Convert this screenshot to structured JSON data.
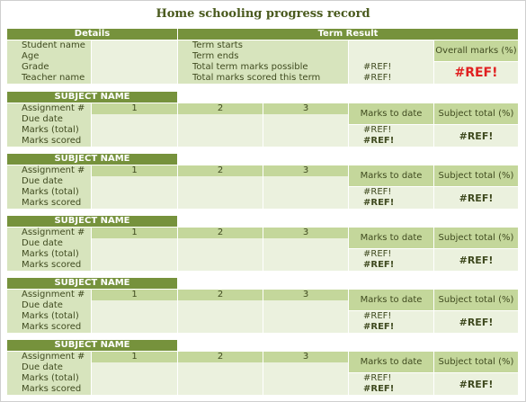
{
  "title": "Home schooling progress record",
  "details": {
    "header": "Details",
    "rows": [
      "Student name",
      "Age",
      "Grade",
      "Teacher name"
    ]
  },
  "term": {
    "header": "Term Result",
    "rows": [
      "Term starts",
      "Term ends",
      "Total term marks possible",
      "Total marks scored this term"
    ],
    "values": [
      "",
      "",
      "#REF!",
      "#REF!"
    ],
    "overall_label": "Overall marks (%)",
    "overall_value": "#REF!"
  },
  "subjects": [
    {
      "header": "SUBJECT  NAME",
      "rows": [
        "Assignment #",
        "Due date",
        "Marks (total)",
        "Marks scored"
      ],
      "assignments": [
        "1",
        "2",
        "3"
      ],
      "marks_to_date_label": "Marks to date",
      "marks_to_date_values": [
        "#REF!",
        "#REF!"
      ],
      "subject_total_label": "Subject total (%)",
      "subject_total_value": "#REF!"
    },
    {
      "header": "SUBJECT  NAME",
      "rows": [
        "Assignment #",
        "Due date",
        "Marks (total)",
        "Marks scored"
      ],
      "assignments": [
        "1",
        "2",
        "3"
      ],
      "marks_to_date_label": "Marks to date",
      "marks_to_date_values": [
        "#REF!",
        "#REF!"
      ],
      "subject_total_label": "Subject total (%)",
      "subject_total_value": "#REF!"
    },
    {
      "header": "SUBJECT  NAME",
      "rows": [
        "Assignment #",
        "Due date",
        "Marks (total)",
        "Marks scored"
      ],
      "assignments": [
        "1",
        "2",
        "3"
      ],
      "marks_to_date_label": "Marks to date",
      "marks_to_date_values": [
        "#REF!",
        "#REF!"
      ],
      "subject_total_label": "Subject total (%)",
      "subject_total_value": "#REF!"
    },
    {
      "header": "SUBJECT  NAME",
      "rows": [
        "Assignment #",
        "Due date",
        "Marks (total)",
        "Marks scored"
      ],
      "assignments": [
        "1",
        "2",
        "3"
      ],
      "marks_to_date_label": "Marks to date",
      "marks_to_date_values": [
        "#REF!",
        "#REF!"
      ],
      "subject_total_label": "Subject total (%)",
      "subject_total_value": "#REF!"
    },
    {
      "header": "SUBJECT  NAME",
      "rows": [
        "Assignment #",
        "Due date",
        "Marks (total)",
        "Marks scored"
      ],
      "assignments": [
        "1",
        "2",
        "3"
      ],
      "marks_to_date_label": "Marks to date",
      "marks_to_date_values": [
        "#REF!",
        "#REF!"
      ],
      "subject_total_label": "Subject total (%)",
      "subject_total_value": "#REF!"
    }
  ],
  "colors": {
    "header_green": "#76923c",
    "label_green": "#d7e4bd",
    "mid_green": "#c4d79b",
    "light_green": "#ebf1de",
    "error_red": "#e02020"
  }
}
